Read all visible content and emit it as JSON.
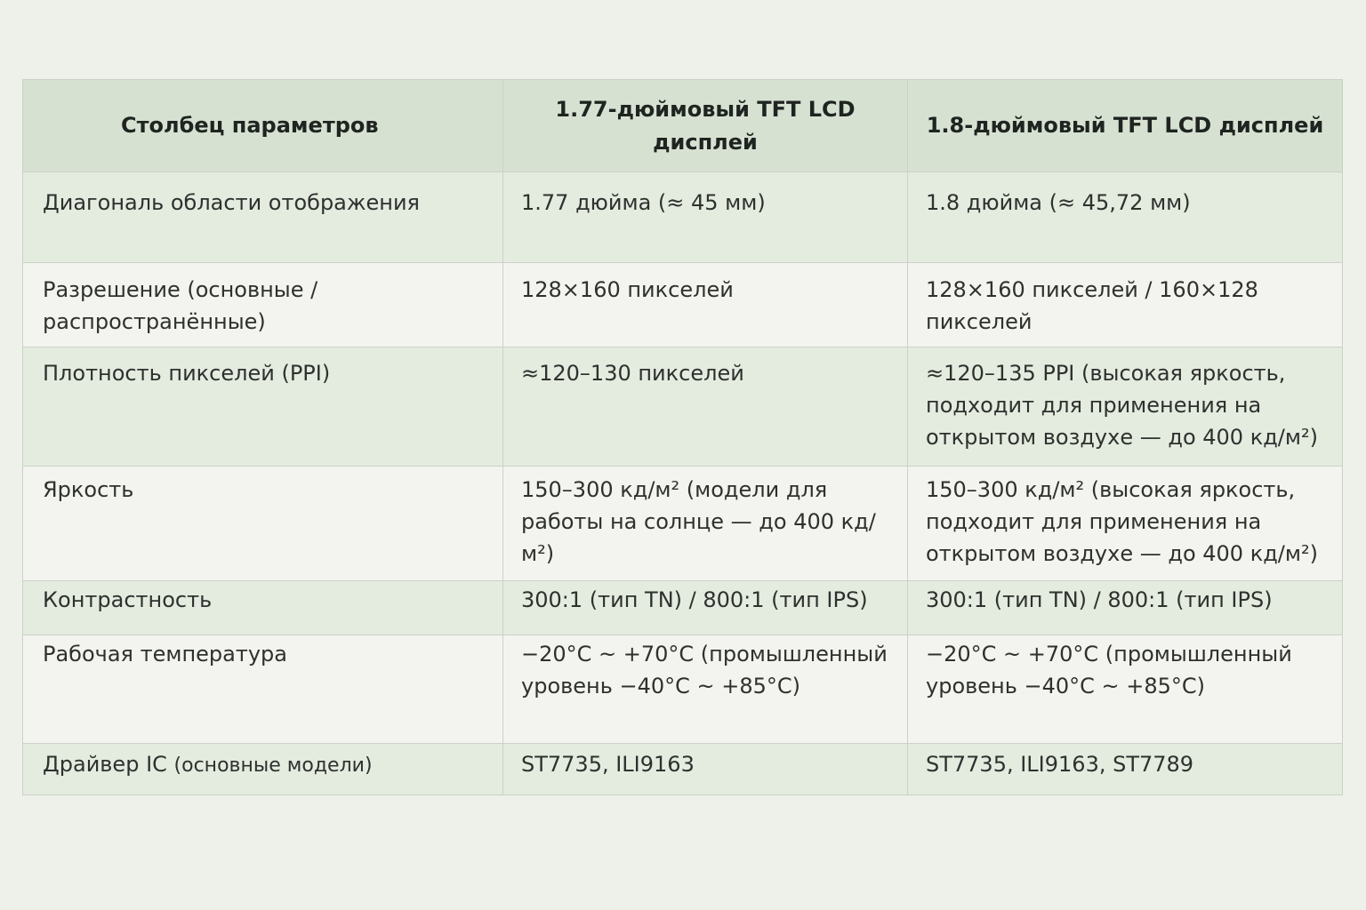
{
  "table": {
    "headers": [
      "Столбец параметров",
      "1.77-дюймовый TFT LCD дисплей",
      "1.8-дюймовый TFT LCD дисплей"
    ],
    "rows": [
      {
        "param": "Диагональ области отображения",
        "param_note": "",
        "v177": "1.77 дюйма (≈ 45 мм)",
        "v18": "1.8 дюйма (≈ 45,72 мм)"
      },
      {
        "param": "Разрешение (основные / распространённые)",
        "param_note": "",
        "v177": "128×160 пикселей",
        "v18": "128×160 пикселей / 160×128 пикселей"
      },
      {
        "param": "Плотность пикселей (PPI)",
        "param_note": "",
        "v177": "≈120–130 пикселей",
        "v18": "≈120–135 PPI (высокая яркость, подходит для применения на открытом воздухе — до 400 кд/м²)"
      },
      {
        "param": "Яркость",
        "param_note": "",
        "v177": "150–300 кд/м² (модели для работы на солнце — до 400 кд/м²)",
        "v18": "150–300 кд/м² (высокая яркость, подходит для применения на открытом воздухе — до 400 кд/м²)"
      },
      {
        "param": "Контрастность",
        "param_note": "",
        "v177": "300:1 (тип TN) / 800:1 (тип IPS)",
        "v18": "300:1 (тип TN) / 800:1 (тип IPS)"
      },
      {
        "param": "Рабочая температура",
        "param_note": "",
        "v177": "−20°C ~ +70°C (промышленный уровень −40°C ~ +85°C)",
        "v18": "−20°C ~ +70°C (промышленный уровень −40°C ~ +85°C)"
      },
      {
        "param": "Драйвер IC",
        "param_note": "(основные модели)",
        "v177": "ST7735, ILI9163",
        "v18": "ST7735, ILI9163, ST7789"
      }
    ]
  }
}
